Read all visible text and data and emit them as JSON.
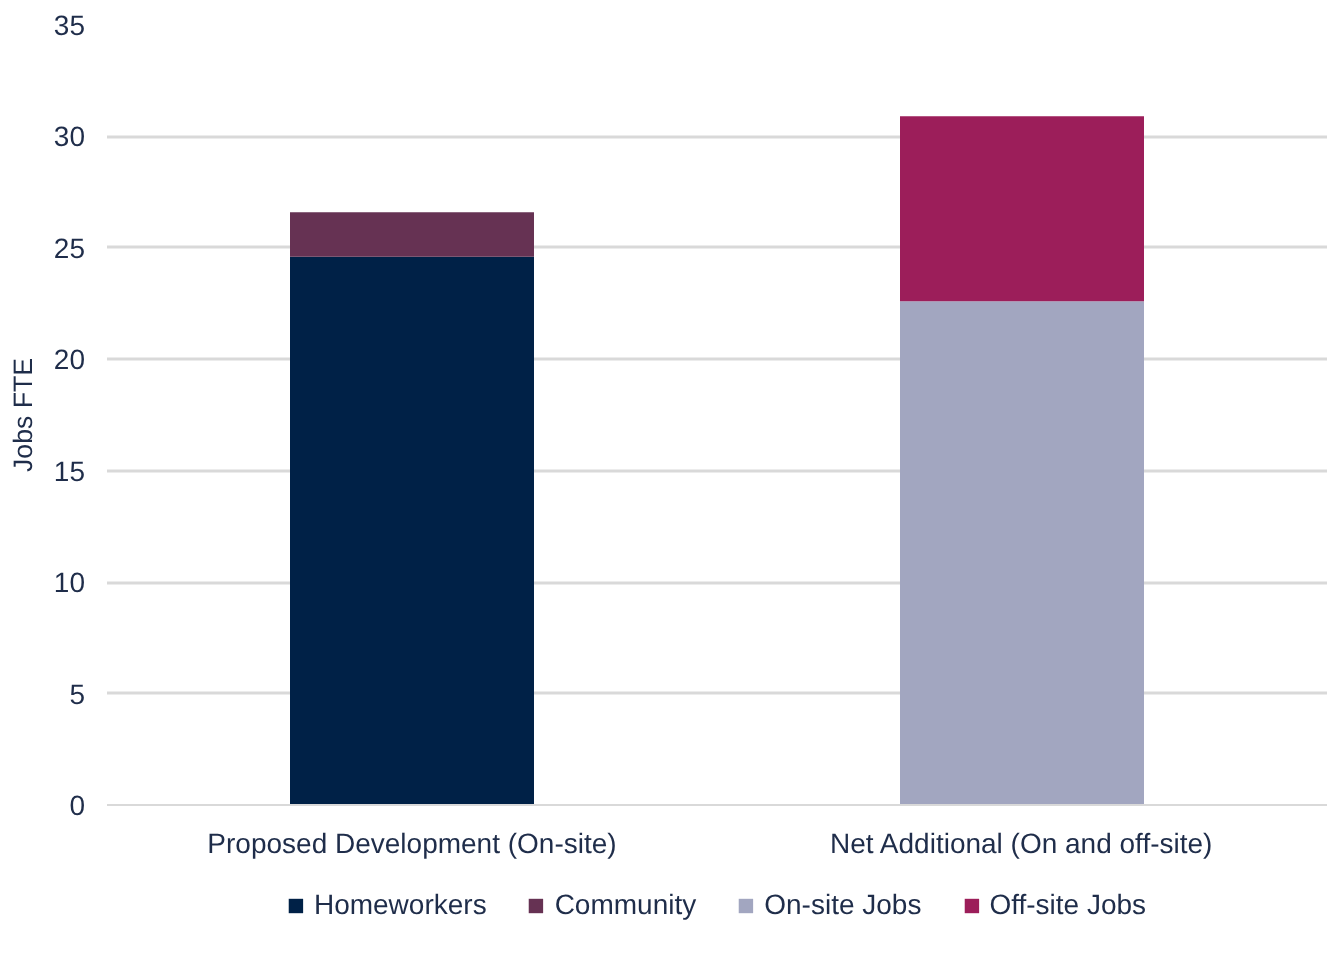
{
  "chart_data": {
    "type": "bar",
    "stacked": true,
    "ylabel": "Jobs FTE",
    "categories": [
      "Proposed Development (On-site)",
      "Net Additional (On and off-site)"
    ],
    "series": [
      {
        "name": "Homeworkers",
        "color": "#002147",
        "values": [
          24.6,
          null
        ]
      },
      {
        "name": "Community",
        "color": "#663253",
        "values": [
          2.0,
          null
        ]
      },
      {
        "name": "On-site Jobs",
        "color": "#a2a6c0",
        "values": [
          null,
          22.6
        ]
      },
      {
        "name": "Off-site Jobs",
        "color": "#9c1e5a",
        "values": [
          null,
          8.3
        ]
      }
    ],
    "ylim": [
      0,
      35
    ],
    "yticks": [
      0,
      5,
      10,
      15,
      20,
      25,
      30,
      35
    ],
    "grid": "y",
    "legend": "bottom"
  }
}
